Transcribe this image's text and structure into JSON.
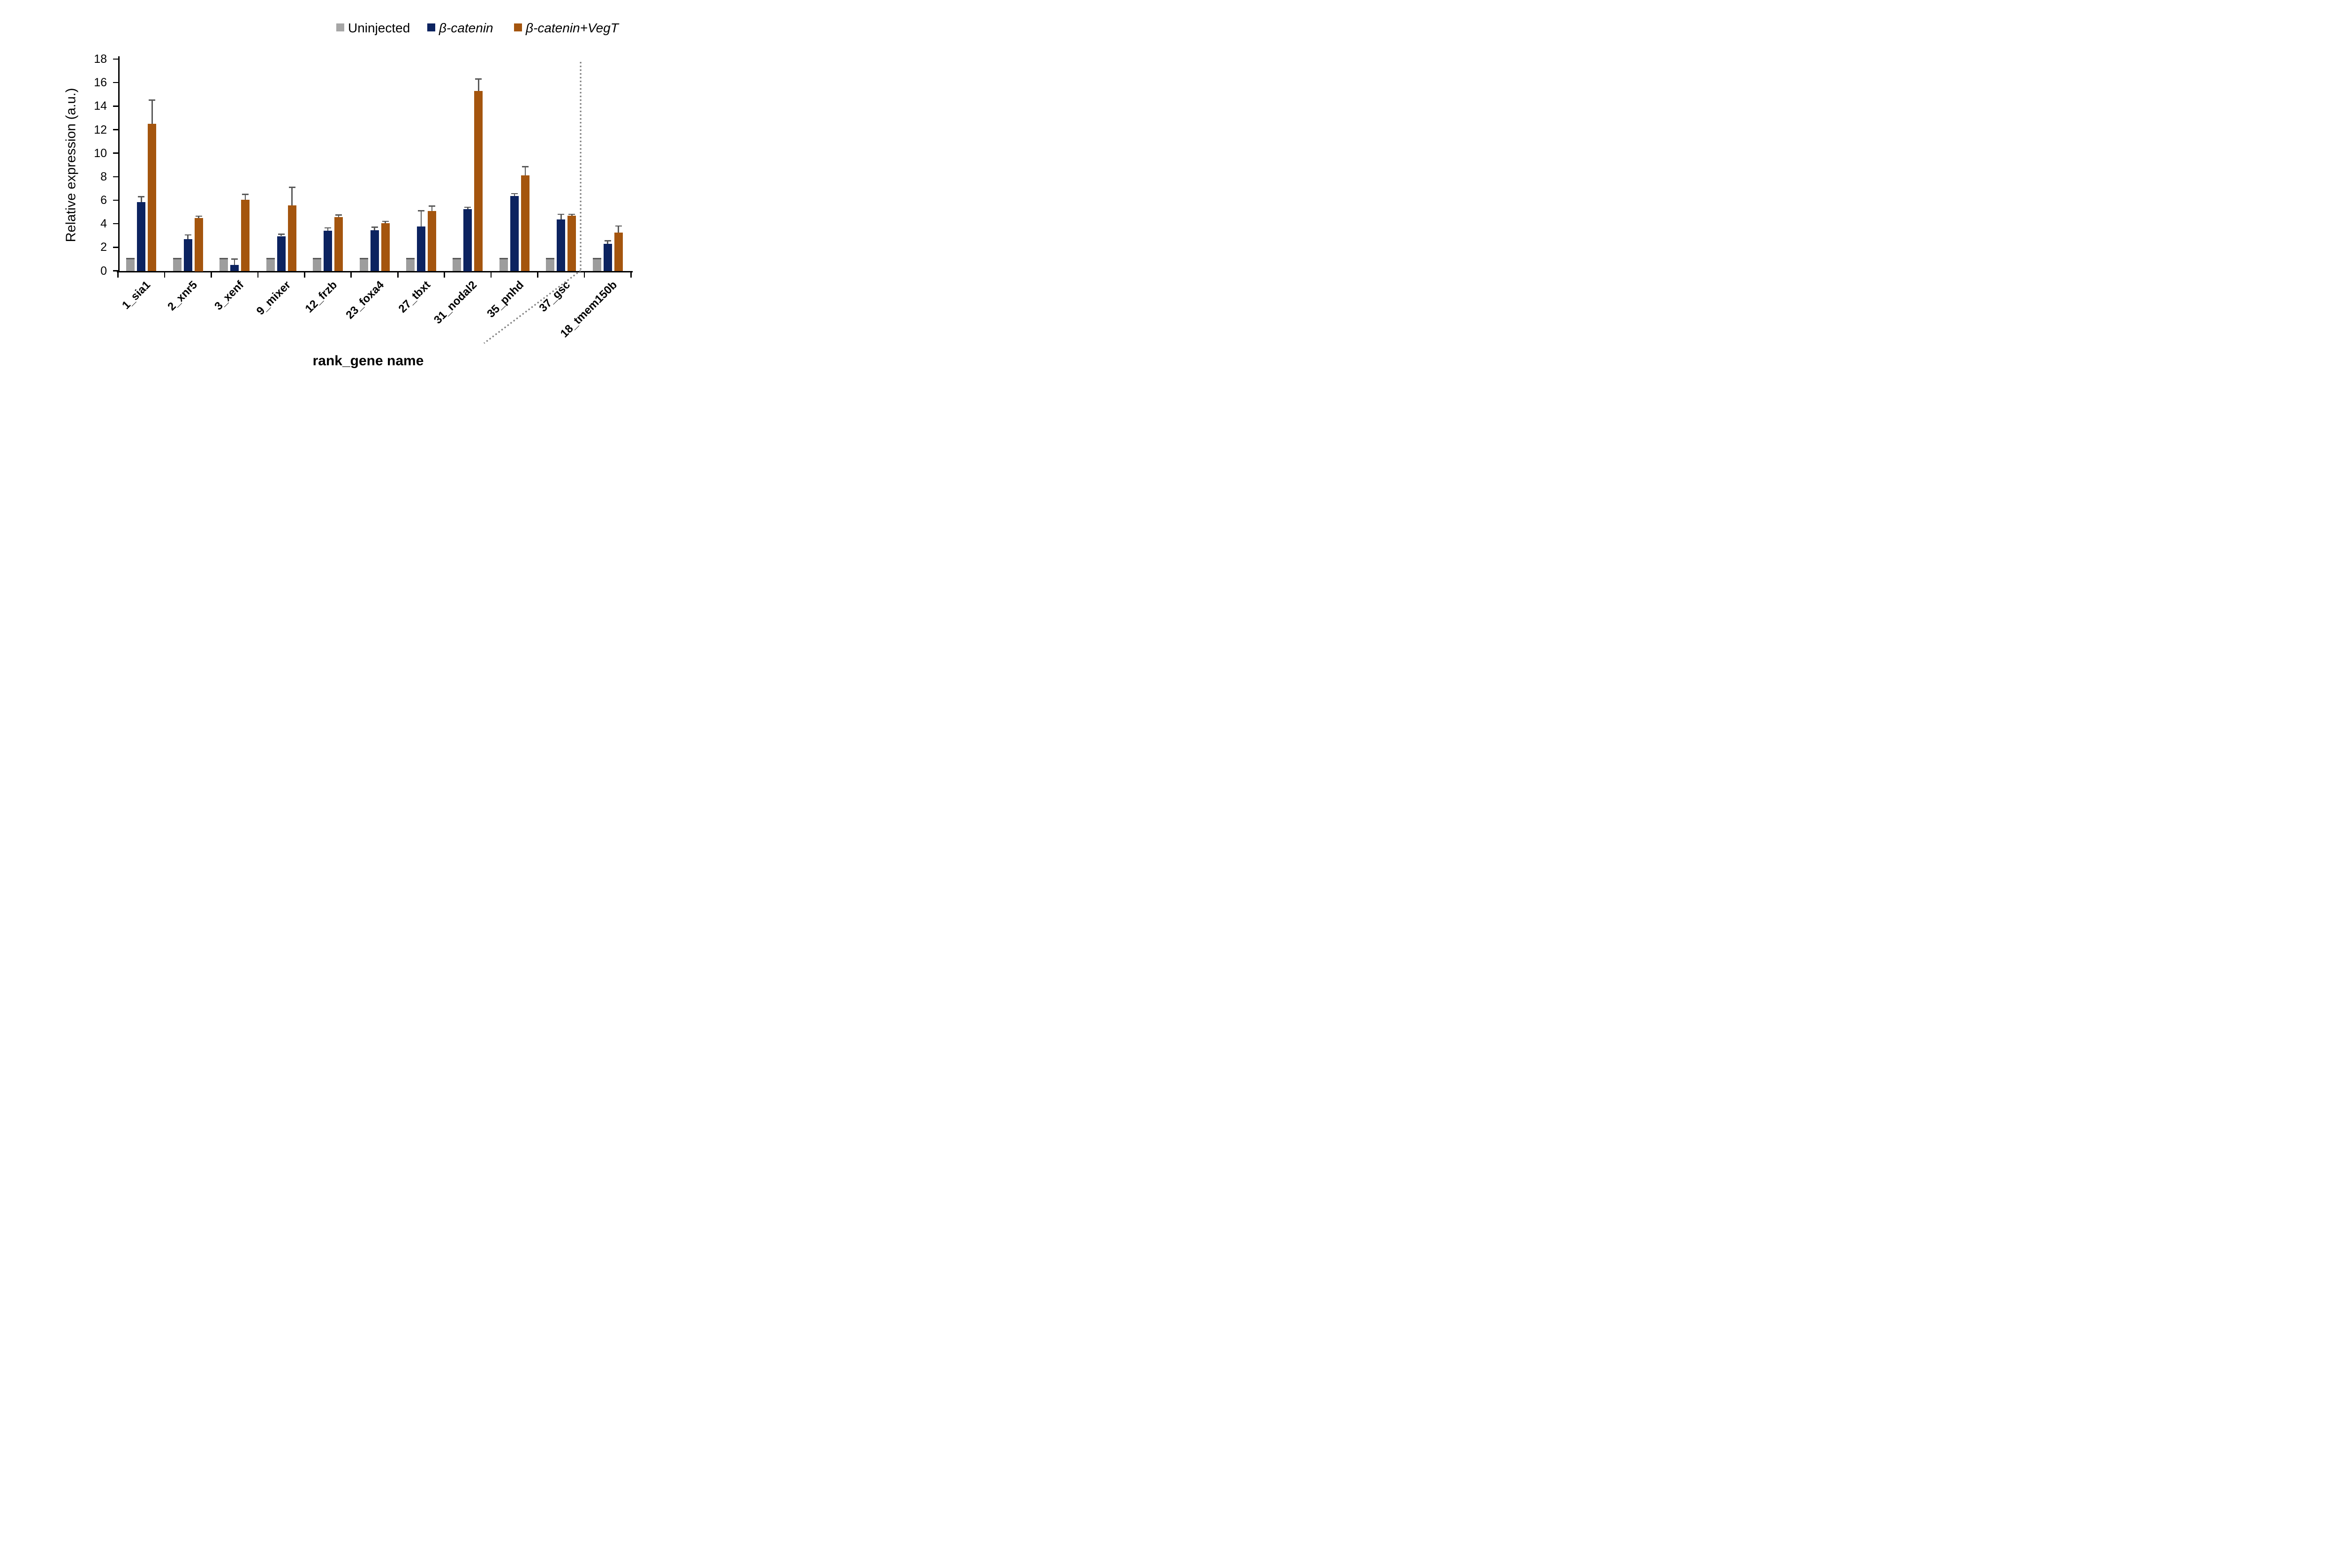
{
  "legend": {
    "items": [
      {
        "label": "Uninjected",
        "color": "#A6A6A6",
        "italic": false
      },
      {
        "label": "β-catenin",
        "color": "#0C2360",
        "italic": true
      },
      {
        "label": "β-catenin+VegT",
        "color": "#A4550E",
        "italic": true
      }
    ]
  },
  "chart_data": {
    "type": "bar",
    "title": "",
    "xlabel": "rank_gene name",
    "ylabel": "Relative expression (a.u.)",
    "ylim": [
      0,
      18
    ],
    "yticks": [
      0,
      2,
      4,
      6,
      8,
      10,
      12,
      14,
      16,
      18
    ],
    "grid": false,
    "legend_position": "top",
    "categories": [
      "1_sia1",
      "2_xnr5",
      "3_xenf",
      "9_mixer",
      "12_frzb",
      "23_foxa4",
      "27_tbxt",
      "31_nodal2",
      "35_pnhd",
      "37_gsc",
      "18_tmem150b"
    ],
    "series": [
      {
        "name": "Uninjected",
        "color": "#9D9D9D",
        "values": [
          1.0,
          1.0,
          1.0,
          1.0,
          1.0,
          1.0,
          1.0,
          1.0,
          1.0,
          1.0,
          1.0
        ],
        "errors": [
          0.04,
          0.04,
          0.04,
          0.04,
          0.04,
          0.04,
          0.04,
          0.04,
          0.04,
          0.04,
          0.04
        ]
      },
      {
        "name": "β-catenin",
        "color": "#0C2360",
        "values": [
          5.85,
          2.7,
          0.5,
          2.95,
          3.4,
          3.45,
          3.75,
          5.25,
          6.35,
          4.35,
          2.3
        ],
        "errors": [
          0.45,
          0.35,
          0.5,
          0.15,
          0.25,
          0.25,
          1.35,
          0.15,
          0.2,
          0.45,
          0.25
        ]
      },
      {
        "name": "β-catenin+VegT",
        "color": "#A4550E",
        "values": [
          12.5,
          4.5,
          6.05,
          5.55,
          4.55,
          4.05,
          5.1,
          15.3,
          8.1,
          4.7,
          3.25
        ],
        "errors": [
          2.0,
          0.15,
          0.45,
          1.55,
          0.2,
          0.15,
          0.4,
          1.0,
          0.75,
          0.1,
          0.55
        ]
      }
    ],
    "separator": {
      "after_category": "37_gsc",
      "style": "dotted",
      "color": "#7F7F7F"
    },
    "error_bar_color": "#595959",
    "axis_color": "#000000"
  }
}
